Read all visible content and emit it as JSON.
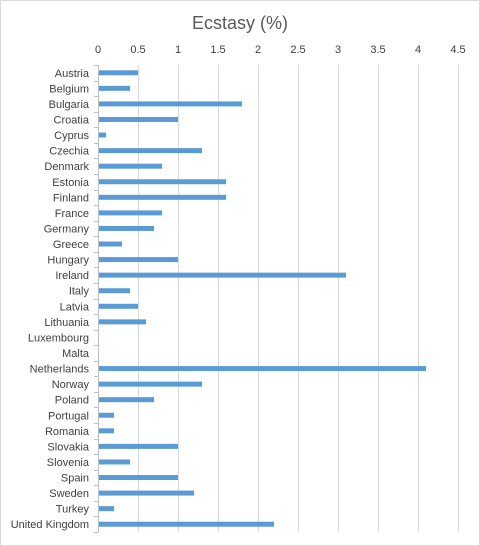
{
  "chart_data": {
    "type": "bar",
    "orientation": "horizontal",
    "title": "Ecstasy (%)",
    "xlabel": "",
    "ylabel": "",
    "xlim": [
      0,
      4.5
    ],
    "x_ticks": [
      "0",
      "0.5",
      "1",
      "1.5",
      "2",
      "2.5",
      "3",
      "3.5",
      "4",
      "4.5"
    ],
    "x_tick_values": [
      0,
      0.5,
      1,
      1.5,
      2,
      2.5,
      3,
      3.5,
      4,
      4.5
    ],
    "x_axis_position": "top",
    "grid": true,
    "bar_color": "#5b9bd5",
    "categories": [
      "Austria",
      "Belgium",
      "Bulgaria",
      "Croatia",
      "Cyprus",
      "Czechia",
      "Denmark",
      "Estonia",
      "Finland",
      "France",
      "Germany",
      "Greece",
      "Hungary",
      "Ireland",
      "Italy",
      "Latvia",
      "Lithuania",
      "Luxembourg",
      "Malta",
      "Netherlands",
      "Norway",
      "Poland",
      "Portugal",
      "Romania",
      "Slovakia",
      "Slovenia",
      "Spain",
      "Sweden",
      "Turkey",
      "United Kingdom"
    ],
    "values": [
      0.5,
      0.4,
      1.8,
      1.0,
      0.1,
      1.3,
      0.8,
      1.6,
      1.6,
      0.8,
      0.7,
      0.3,
      1.0,
      3.1,
      0.4,
      0.5,
      0.6,
      null,
      null,
      4.1,
      1.3,
      0.7,
      0.2,
      0.2,
      1.0,
      0.4,
      1.0,
      1.2,
      0.2,
      2.2
    ]
  }
}
